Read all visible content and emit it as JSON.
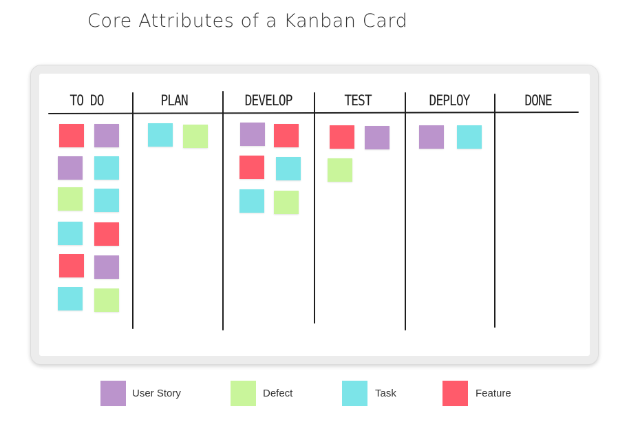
{
  "title": "Core Attributes of a Kanban Card",
  "colors": {
    "user_story": "#bb94cc",
    "defect": "#c9f59b",
    "task": "#7ce4e8",
    "feature": "#ff5b6b"
  },
  "columns": [
    {
      "label": "TO DO",
      "cards": [
        "feature",
        "user_story",
        "user_story",
        "task",
        "defect",
        "task",
        "task",
        "feature",
        "feature",
        "user_story",
        "task",
        "defect"
      ]
    },
    {
      "label": "PLAN",
      "cards": [
        "task",
        "defect"
      ]
    },
    {
      "label": "DEVELOP",
      "cards": [
        "user_story",
        "feature",
        "feature",
        "task",
        "task",
        "defect"
      ]
    },
    {
      "label": "TEST",
      "cards": [
        "feature",
        "user_story",
        "defect"
      ]
    },
    {
      "label": "DEPLOY",
      "cards": [
        "user_story",
        "task"
      ]
    },
    {
      "label": "DONE",
      "cards": []
    }
  ],
  "legend": [
    {
      "type": "user_story",
      "label": "User Story"
    },
    {
      "type": "defect",
      "label": "Defect"
    },
    {
      "type": "task",
      "label": "Task"
    },
    {
      "type": "feature",
      "label": "Feature"
    }
  ]
}
